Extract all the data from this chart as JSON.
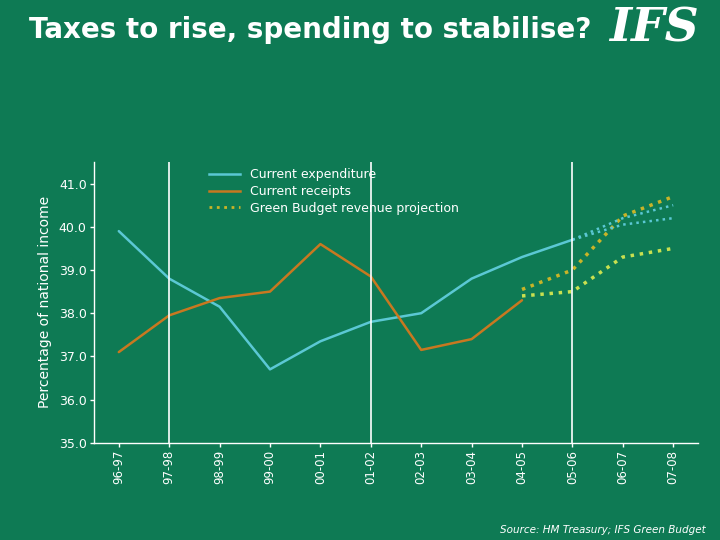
{
  "background_color": "#0e7a54",
  "title": "Taxes to rise, spending to stabilise?",
  "title_color": "white",
  "title_fontsize": 20,
  "ylabel": "Percentage of national income",
  "ylabel_color": "white",
  "ylabel_fontsize": 10,
  "source_text": "Source: HM Treasury; IFS Green Budget",
  "ifs_logo_text": "IFS",
  "x_labels": [
    "96-97",
    "97-98",
    "98-99",
    "99-00",
    "00-01",
    "01-02",
    "02-03",
    "03-04",
    "04-05",
    "05-06",
    "06-07",
    "07-08"
  ],
  "ylim": [
    35.0,
    41.5
  ],
  "yticks": [
    35.0,
    36.0,
    37.0,
    38.0,
    39.0,
    40.0,
    41.0
  ],
  "vline_positions": [
    1,
    5,
    9
  ],
  "current_expenditure": {
    "x": [
      0,
      1,
      2,
      3,
      4,
      5,
      6,
      7,
      8,
      9
    ],
    "y": [
      39.9,
      38.8,
      38.15,
      36.7,
      37.35,
      37.8,
      38.0,
      38.8,
      39.3,
      39.7
    ],
    "color": "#5bc8d4",
    "label": "Current expenditure",
    "linewidth": 1.8
  },
  "current_receipts": {
    "x": [
      0,
      1,
      2,
      3,
      4,
      5,
      6,
      7,
      8
    ],
    "y": [
      37.1,
      37.95,
      38.35,
      38.5,
      39.6,
      38.85,
      37.15,
      37.4,
      38.3
    ],
    "color": "#c87820",
    "label": "Current receipts",
    "linewidth": 1.8
  },
  "green_budget_projection_upper": {
    "x": [
      8,
      9,
      10,
      11
    ],
    "y": [
      38.55,
      39.0,
      40.25,
      40.7
    ],
    "color": "#c8b428",
    "label": "Green Budget revenue projection",
    "linestyle": "dotted",
    "linewidth": 2.5
  },
  "green_budget_projection_lower": {
    "x": [
      8,
      9,
      10,
      11
    ],
    "y": [
      38.4,
      38.5,
      39.3,
      39.5
    ],
    "color": "#c8e050",
    "linestyle": "dotted",
    "linewidth": 2.5
  },
  "expenditure_projection_upper": {
    "x": [
      9,
      10,
      11
    ],
    "y": [
      39.7,
      40.2,
      40.5
    ],
    "color": "#5bc8d4",
    "linestyle": "dotted",
    "linewidth": 1.8
  },
  "expenditure_projection_lower": {
    "x": [
      9,
      10,
      11
    ],
    "y": [
      39.7,
      40.05,
      40.2
    ],
    "color": "#5bc8d4",
    "linestyle": "dotted",
    "linewidth": 1.8
  }
}
